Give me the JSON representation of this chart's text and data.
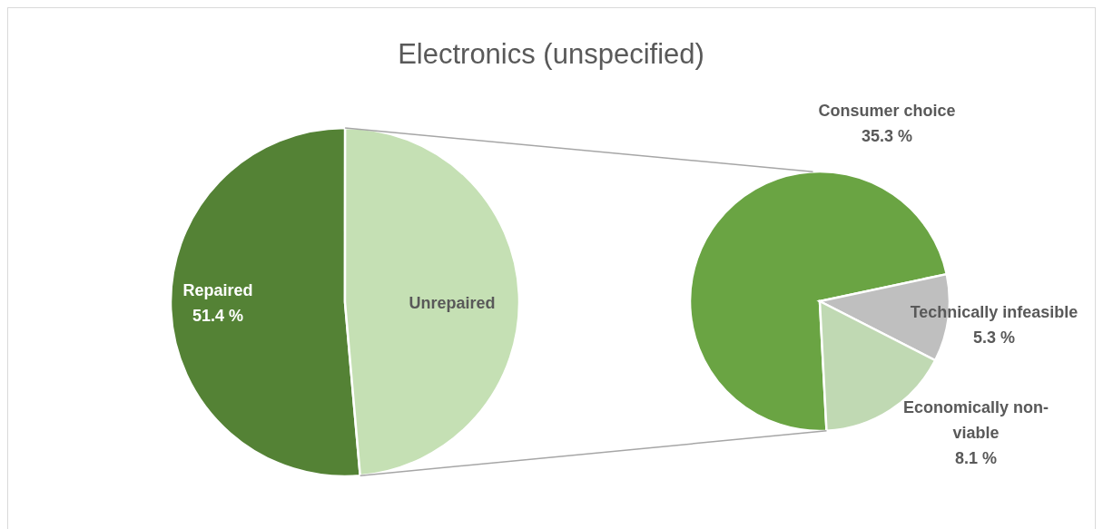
{
  "chart_data": [
    {
      "type": "pie",
      "title": "Electronics (unspecified)",
      "categories": [
        "Repaired",
        "Unrepaired"
      ],
      "values": [
        51.4,
        48.6
      ],
      "colors": [
        "#548235",
        "#c5e0b4"
      ],
      "value_labels": [
        "51.4 %",
        null
      ]
    },
    {
      "type": "pie",
      "categories": [
        "Consumer choice",
        "Technically infeasible",
        "Economically non-viable"
      ],
      "values": [
        35.3,
        5.3,
        8.1
      ],
      "colors": [
        "#6aa443",
        "#bfbfbf",
        "#c0d9b3"
      ],
      "value_labels": [
        "35.3 %",
        "5.3 %",
        "8.1 %"
      ]
    }
  ]
}
